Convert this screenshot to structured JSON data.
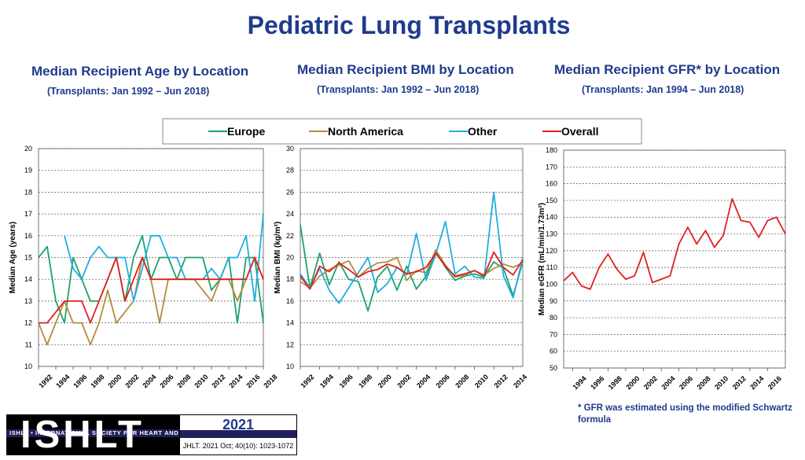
{
  "title": "Pediatric Lung Transplants",
  "panels": [
    {
      "title": "Median Recipient Age by Location",
      "subtitle": "(Transplants: Jan 1992 – Jun 2018)"
    },
    {
      "title": "Median Recipient BMI by Location",
      "subtitle": "(Transplants: Jan 1992 – Jun 2018)"
    },
    {
      "title": "Median Recipient GFR* by Location",
      "subtitle": "(Transplants: Jan 1994 – Jun 2018)"
    }
  ],
  "legend": [
    {
      "name": "Europe",
      "color": "#1aa36a"
    },
    {
      "name": "North America",
      "color": "#b58a3c"
    },
    {
      "name": "Other",
      "color": "#22aee0"
    },
    {
      "name": "Overall",
      "color": "#e02020"
    }
  ],
  "footnote": "* GFR was estimated using the modified Schwartz formula",
  "logo": {
    "name": "ISHLT",
    "tagline": "ISHLT • INTERNATIONAL SOCIETY FOR HEART AND LUNG TRANSPLANTATION",
    "year": "2021",
    "citation": "JHLT. 2021 Oct; 40(10): 1023-1072"
  },
  "chart_data": [
    {
      "type": "line",
      "title": "Median Recipient Age by Location",
      "ylabel": "Median Age (years)",
      "ylim": [
        10,
        20
      ],
      "yticks": [
        10,
        11,
        12,
        13,
        14,
        15,
        16,
        17,
        18,
        19,
        20
      ],
      "xlim": [
        1992,
        2018
      ],
      "xticks": [
        1992,
        1994,
        1996,
        1998,
        2000,
        2002,
        2004,
        2006,
        2008,
        2010,
        2012,
        2014,
        2016,
        2018
      ],
      "series": [
        {
          "name": "Europe",
          "x": [
            1992,
            1993,
            1994,
            1995,
            1996,
            1997,
            1998,
            1999,
            2000,
            2001,
            2002,
            2003,
            2004,
            2005,
            2006,
            2007,
            2008,
            2009,
            2010,
            2011,
            2012,
            2013,
            2014,
            2015,
            2016,
            2017,
            2018
          ],
          "values": [
            15,
            15.5,
            13,
            12,
            15,
            14,
            13,
            13,
            14,
            15,
            13,
            15,
            16,
            14,
            15,
            15,
            14,
            15,
            15,
            15,
            13.5,
            14,
            15,
            12,
            15,
            15,
            12
          ]
        },
        {
          "name": "North America",
          "x": [
            1992,
            1993,
            1994,
            1995,
            1996,
            1997,
            1998,
            1999,
            2000,
            2001,
            2002,
            2003,
            2004,
            2005,
            2006,
            2007,
            2008,
            2009,
            2010,
            2011,
            2012,
            2013,
            2014,
            2015,
            2016,
            2017,
            2018
          ],
          "values": [
            12,
            11,
            12,
            13,
            12,
            12,
            11,
            12,
            13.5,
            12,
            12.5,
            13,
            15,
            14,
            12,
            14,
            14,
            14,
            14,
            13.5,
            13,
            14,
            14,
            13,
            14,
            15,
            14
          ]
        },
        {
          "name": "Other",
          "x": [
            1995,
            1996,
            1997,
            1998,
            1999,
            2000,
            2001,
            2002,
            2003,
            2004,
            2005,
            2006,
            2007,
            2008,
            2009,
            2010,
            2011,
            2012,
            2013,
            2014,
            2015,
            2016,
            2017,
            2018
          ],
          "values": [
            16,
            14.5,
            14,
            15,
            15.5,
            15,
            15,
            15,
            13,
            14.5,
            16,
            16,
            15,
            15,
            14,
            14,
            14,
            14.5,
            14,
            15,
            15,
            16,
            13,
            17
          ]
        },
        {
          "name": "Overall",
          "x": [
            1992,
            1993,
            1994,
            1995,
            1996,
            1997,
            1998,
            1999,
            2000,
            2001,
            2002,
            2003,
            2004,
            2005,
            2006,
            2007,
            2008,
            2009,
            2010,
            2011,
            2012,
            2013,
            2014,
            2015,
            2016,
            2017,
            2018
          ],
          "values": [
            12,
            12,
            12.5,
            13,
            13,
            13,
            12,
            13,
            14,
            15,
            13,
            14,
            15,
            14,
            14,
            14,
            14,
            14,
            14,
            14,
            14,
            14,
            14,
            14,
            14,
            15,
            14
          ]
        }
      ]
    },
    {
      "type": "line",
      "title": "Median Recipient BMI by Location",
      "ylabel": "Median BMI (kg/m²)",
      "ylim": [
        10,
        30
      ],
      "yticks": [
        10,
        12,
        14,
        16,
        18,
        20,
        22,
        24,
        26,
        28,
        30
      ],
      "xlim": [
        1992,
        2015
      ],
      "xticks": [
        1992,
        1994,
        1996,
        1998,
        2000,
        2002,
        2004,
        2006,
        2008,
        2010,
        2012,
        2014
      ],
      "series": [
        {
          "name": "Europe",
          "x": [
            1992,
            1993,
            1994,
            1995,
            1996,
            1997,
            1998,
            1999,
            2000,
            2001,
            2002,
            2003,
            2004,
            2005,
            2006,
            2007,
            2008,
            2009,
            2010,
            2011,
            2012,
            2013,
            2014,
            2015
          ],
          "values": [
            23,
            17.2,
            20.4,
            17.5,
            19.6,
            18,
            17.8,
            15.1,
            18.2,
            19.2,
            17,
            19.2,
            17.1,
            18.3,
            20.6,
            19.1,
            17.9,
            18.3,
            18.5,
            18.2,
            19.6,
            19,
            16.5,
            19.6
          ]
        },
        {
          "name": "North America",
          "x": [
            1992,
            1993,
            1994,
            1995,
            1996,
            1997,
            1998,
            1999,
            2000,
            2001,
            2002,
            2003,
            2004,
            2005,
            2006,
            2007,
            2008,
            2009,
            2010,
            2011,
            2012,
            2013,
            2014,
            2015
          ],
          "values": [
            17.8,
            17.2,
            18.3,
            18.9,
            19.3,
            19.7,
            18.2,
            19,
            19.5,
            19.6,
            20,
            17.9,
            18.8,
            18.6,
            20.7,
            19.3,
            18.2,
            18.4,
            18.8,
            18.4,
            19,
            19.4,
            19.1,
            19.5
          ]
        },
        {
          "name": "Other",
          "x": [
            1992,
            1993,
            1994,
            1995,
            1996,
            1999,
            2000,
            2001,
            2002,
            2003,
            2004,
            2005,
            2006,
            2007,
            2008,
            2009,
            2010,
            2011,
            2012,
            2013,
            2014,
            2015
          ],
          "values": [
            18.5,
            17.2,
            19,
            17,
            15.8,
            20,
            16.8,
            17.6,
            19.1,
            18.4,
            22.2,
            17.9,
            20.3,
            23.3,
            18.5,
            19.2,
            18.2,
            18.1,
            26,
            18.3,
            16.3,
            20
          ]
        },
        {
          "name": "Overall",
          "x": [
            1992,
            1993,
            1994,
            1995,
            1996,
            1997,
            1998,
            1999,
            2000,
            2001,
            2002,
            2003,
            2004,
            2005,
            2006,
            2007,
            2008,
            2009,
            2010,
            2011,
            2012,
            2013,
            2014,
            2015
          ],
          "values": [
            18.3,
            17.1,
            19.2,
            18.7,
            19.5,
            18.9,
            18.2,
            18.7,
            18.9,
            19.4,
            19.1,
            18.5,
            18.7,
            19.1,
            20.4,
            19.2,
            18.3,
            18.5,
            18.8,
            18.3,
            20.5,
            19.1,
            18.4,
            19.8
          ]
        }
      ]
    },
    {
      "type": "line",
      "title": "Median Recipient GFR* by Location",
      "ylabel": "Median eGFR (mL/min/1.73m²)",
      "ylim": [
        50,
        180
      ],
      "yticks": [
        50,
        60,
        70,
        80,
        90,
        100,
        110,
        120,
        130,
        140,
        150,
        160,
        170,
        180
      ],
      "xlim": [
        1993,
        2018
      ],
      "xticks": [
        1994,
        1996,
        1998,
        2000,
        2002,
        2004,
        2006,
        2008,
        2010,
        2012,
        2014,
        2016
      ],
      "series": [
        {
          "name": "Overall",
          "x": [
            1993,
            1994,
            1995,
            1996,
            1997,
            1998,
            1999,
            2000,
            2001,
            2002,
            2003,
            2004,
            2005,
            2006,
            2007,
            2008,
            2009,
            2010,
            2011,
            2012,
            2013,
            2014,
            2015,
            2016,
            2017,
            2018
          ],
          "values": [
            102,
            107,
            99,
            97,
            110,
            118,
            109,
            103,
            105,
            119,
            101,
            103,
            105,
            124,
            134,
            124,
            132,
            122,
            129,
            151,
            138,
            137,
            128,
            138,
            140,
            130
          ]
        }
      ]
    }
  ]
}
